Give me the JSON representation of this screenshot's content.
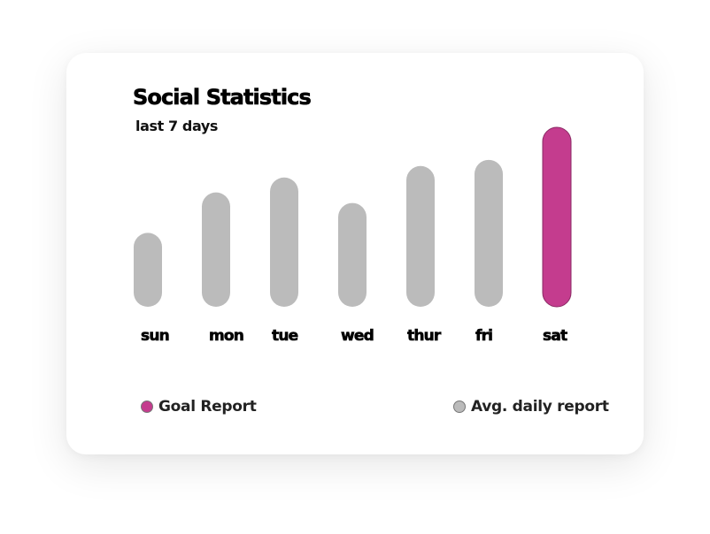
{
  "colors": {
    "goal": "#c43c8e",
    "average": "#bbbbbb",
    "background": "#ffffff",
    "text": "#000000"
  },
  "chart_data": {
    "type": "bar",
    "title": "Social Statistics",
    "subtitle": "last 7 days",
    "categories": [
      "sun",
      "mon",
      "tue",
      "wed",
      "thur",
      "fri",
      "sat"
    ],
    "values": [
      84,
      130,
      147,
      118,
      160,
      167,
      204
    ],
    "highlight_index": 6,
    "ylim": [
      0,
      204
    ],
    "grid": false,
    "legend_position": "bottom",
    "legend": [
      {
        "label": "Goal Report",
        "color": "#c43c8e"
      },
      {
        "label": "Avg. daily report",
        "color": "#bbbbbb"
      }
    ]
  }
}
